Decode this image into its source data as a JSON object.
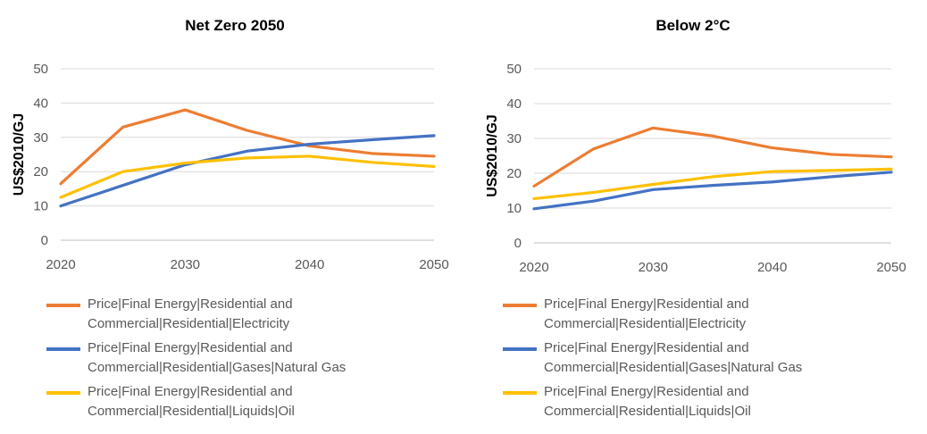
{
  "chart_data": [
    {
      "type": "line",
      "title": "Net Zero 2050",
      "ylabel": "US$2010/GJ",
      "xlabel": "",
      "xlim": [
        2020,
        2050
      ],
      "ylim": [
        0,
        50
      ],
      "x_ticks": [
        "2020",
        "2030",
        "2040",
        "2050"
      ],
      "y_ticks": [
        "0",
        "10",
        "20",
        "30",
        "40",
        "50"
      ],
      "grid": true,
      "legend_position": "bottom",
      "x": [
        2020,
        2025,
        2030,
        2035,
        2040,
        2045,
        2050
      ],
      "series": [
        {
          "name": "Price|Final Energy|Residential and Commercial|Residential|Electricity",
          "color": "#ED7D31",
          "values": [
            16.5,
            33,
            38,
            32,
            27.5,
            25.3,
            24.5
          ]
        },
        {
          "name": "Price|Final Energy|Residential and Commercial|Residential|Gases|Natural Gas",
          "color": "#4472C4",
          "values": [
            10,
            16,
            22,
            26,
            28,
            29.3,
            30.5
          ]
        },
        {
          "name": "Price|Final Energy|Residential and Commercial|Residential|Liquids|Oil",
          "color": "#FFC000",
          "values": [
            12.5,
            20,
            22.5,
            24,
            24.5,
            22.7,
            21.5
          ]
        }
      ]
    },
    {
      "type": "line",
      "title": "Below 2°C",
      "ylabel": "US$2010/GJ",
      "xlabel": "",
      "xlim": [
        2020,
        2050
      ],
      "ylim": [
        0,
        50
      ],
      "x_ticks": [
        "2020",
        "2030",
        "2040",
        "2050"
      ],
      "y_ticks": [
        "0",
        "10",
        "20",
        "30",
        "40",
        "50"
      ],
      "grid": true,
      "legend_position": "bottom",
      "x": [
        2020,
        2025,
        2030,
        2035,
        2040,
        2045,
        2050
      ],
      "series": [
        {
          "name": "Price|Final Energy|Residential and Commercial|Residential|Electricity",
          "color": "#ED7D31",
          "values": [
            16.3,
            27,
            33,
            30.7,
            27.3,
            25.4,
            24.7
          ]
        },
        {
          "name": "Price|Final Energy|Residential and Commercial|Residential|Gases|Natural Gas",
          "color": "#4472C4",
          "values": [
            9.8,
            12,
            15.3,
            16.5,
            17.5,
            19,
            20.3
          ]
        },
        {
          "name": "Price|Final Energy|Residential and Commercial|Residential|Liquids|Oil",
          "color": "#FFC000",
          "values": [
            12.7,
            14.5,
            16.8,
            19,
            20.5,
            20.8,
            21.2
          ]
        }
      ]
    }
  ]
}
